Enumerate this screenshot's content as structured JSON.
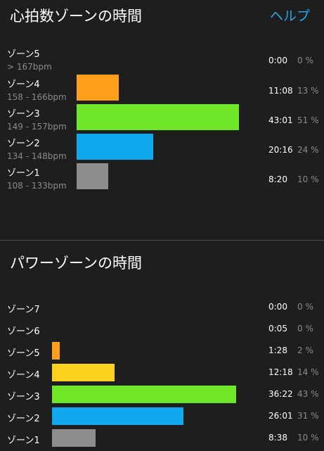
{
  "heart_rate": {
    "title": "心拍数ゾーンの時間",
    "help_label": "ヘルプ",
    "max_minutes": 43.017,
    "zones": [
      {
        "name": "ゾーン5",
        "range": "> 167bpm",
        "time": "0:00",
        "percent": "0 %",
        "minutes": 0,
        "color": "#f5a623"
      },
      {
        "name": "ゾーン4",
        "range": "158 - 166bpm",
        "time": "11:08",
        "percent": "13 %",
        "minutes": 11.133,
        "color": "#ff9f1a"
      },
      {
        "name": "ゾーン3",
        "range": "149 - 157bpm",
        "time": "43:01",
        "percent": "51 %",
        "minutes": 43.017,
        "color": "#6fe628"
      },
      {
        "name": "ゾーン2",
        "range": "134 - 148bpm",
        "time": "20:16",
        "percent": "24 %",
        "minutes": 20.267,
        "color": "#11a9ee"
      },
      {
        "name": "ゾーン1",
        "range": "108 - 133bpm",
        "time": "8:20",
        "percent": "10 %",
        "minutes": 8.333,
        "color": "#8c8c8c"
      }
    ]
  },
  "power": {
    "title": "パワーゾーンの時間",
    "max_minutes": 36.367,
    "zones": [
      {
        "name": "ゾーン7",
        "time": "0:00",
        "percent": "0 %",
        "minutes": 0,
        "color": "#e8483a"
      },
      {
        "name": "ゾーン6",
        "time": "0:05",
        "percent": "0 %",
        "minutes": 0.083,
        "color": "#e8483a"
      },
      {
        "name": "ゾーン5",
        "time": "1:28",
        "percent": "2 %",
        "minutes": 1.467,
        "color": "#ff9f1a"
      },
      {
        "name": "ゾーン4",
        "time": "12:18",
        "percent": "14 %",
        "minutes": 12.3,
        "color": "#ffd21f"
      },
      {
        "name": "ゾーン3",
        "time": "36:22",
        "percent": "43 %",
        "minutes": 36.367,
        "color": "#6fe628"
      },
      {
        "name": "ゾーン2",
        "time": "26:01",
        "percent": "31 %",
        "minutes": 26.017,
        "color": "#11a9ee"
      },
      {
        "name": "ゾーン1",
        "time": "8:38",
        "percent": "10 %",
        "minutes": 8.633,
        "color": "#8c8c8c"
      }
    ]
  }
}
